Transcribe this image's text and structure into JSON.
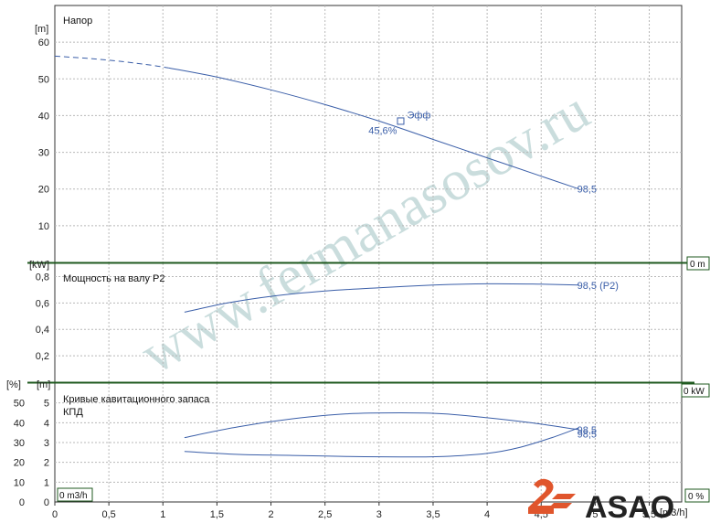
{
  "watermark": "www.fermanasosov.ru",
  "logo": {
    "text": "ASAO",
    "accent": "#e0552c"
  },
  "colors": {
    "curve": "#3a5ea8",
    "grid": "#b8b8b8",
    "separator": "#1f5a1f",
    "border": "#333333"
  },
  "chart_data": [
    {
      "type": "line",
      "title": "Напор",
      "ylabel": "[m]",
      "xlim": [
        0,
        5.8
      ],
      "ylim": [
        0,
        70
      ],
      "yticks": [
        "10",
        "20",
        "30",
        "40",
        "50",
        "60"
      ],
      "series": [
        {
          "name": "",
          "dashed": true,
          "x": [
            0,
            0.3,
            0.6,
            0.9,
            1.05
          ],
          "y": [
            56.2,
            55.6,
            54.8,
            53.7,
            53.0
          ]
        },
        {
          "name": "",
          "x": [
            1.05,
            1.5,
            2.0,
            2.5,
            3.0,
            3.5,
            4.0,
            4.5,
            4.85
          ],
          "y": [
            53.0,
            50.5,
            47.0,
            43.0,
            38.5,
            33.5,
            28.5,
            23.5,
            20.0
          ]
        }
      ],
      "annotations": [
        {
          "text": "Эфф",
          "x": 3.2,
          "y": 38.5,
          "marker": "square"
        },
        {
          "text": "45,6%",
          "x": 3.2,
          "y": 38.5
        },
        {
          "text": "98,5",
          "x": 4.85,
          "y": 20.0
        }
      ],
      "right_box": "0 m"
    },
    {
      "type": "line",
      "title": "Мощность на валу P2",
      "ylabel": "[kW]",
      "xlim": [
        0,
        5.8
      ],
      "ylim": [
        0,
        0.9
      ],
      "yticks": [
        "0,2",
        "0,4",
        "0,6",
        "0,8"
      ],
      "series": [
        {
          "name": "",
          "x": [
            1.2,
            1.6,
            2.0,
            2.5,
            3.0,
            3.5,
            4.0,
            4.5,
            4.85
          ],
          "y": [
            0.53,
            0.6,
            0.65,
            0.69,
            0.715,
            0.735,
            0.745,
            0.742,
            0.735
          ]
        }
      ],
      "annotations": [
        {
          "text": "98,5 (P2)",
          "x": 4.85,
          "y": 0.735
        }
      ],
      "right_box": "0 kW"
    },
    {
      "type": "line",
      "title": "Кривые кавитационного запаса",
      "title2": "КПД",
      "ylabel_left": "[%]",
      "ylabel_right": "[m]",
      "xlim": [
        0,
        5.8
      ],
      "ylim_left": [
        0,
        60
      ],
      "ylim_right": [
        0,
        6
      ],
      "yticks_left": [
        "0",
        "10",
        "20",
        "30",
        "40",
        "50"
      ],
      "yticks_right": [
        "0",
        "1",
        "2",
        "3",
        "4",
        "5"
      ],
      "series": [
        {
          "name": "",
          "axis": "right",
          "x": [
            1.2,
            1.7,
            2.2,
            2.7,
            3.2,
            3.6,
            4.0,
            4.4,
            4.85
          ],
          "y": [
            3.25,
            3.8,
            4.2,
            4.45,
            4.5,
            4.45,
            4.25,
            4.0,
            3.65
          ]
        },
        {
          "name": "",
          "axis": "left",
          "x": [
            1.2,
            1.7,
            2.2,
            2.7,
            3.2,
            3.6,
            4.0,
            4.3,
            4.6,
            4.85
          ],
          "y": [
            25.5,
            24.0,
            23.5,
            23.0,
            22.7,
            23.0,
            24.5,
            27.5,
            32.5,
            37.5
          ]
        }
      ],
      "annotations": [
        {
          "text": "98,5",
          "x": 4.85,
          "y": 3.65
        },
        {
          "text": "98,5",
          "x": 4.85,
          "y": 3.45
        }
      ],
      "left_box": "0 m3/h",
      "right_box": "0 %"
    }
  ],
  "x_axis": {
    "label": "[m3/h]",
    "ticks": [
      "0",
      "0,5",
      "1",
      "1,5",
      "2",
      "2,5",
      "3",
      "3,5",
      "4",
      "4,5",
      "5",
      "5,5"
    ]
  }
}
